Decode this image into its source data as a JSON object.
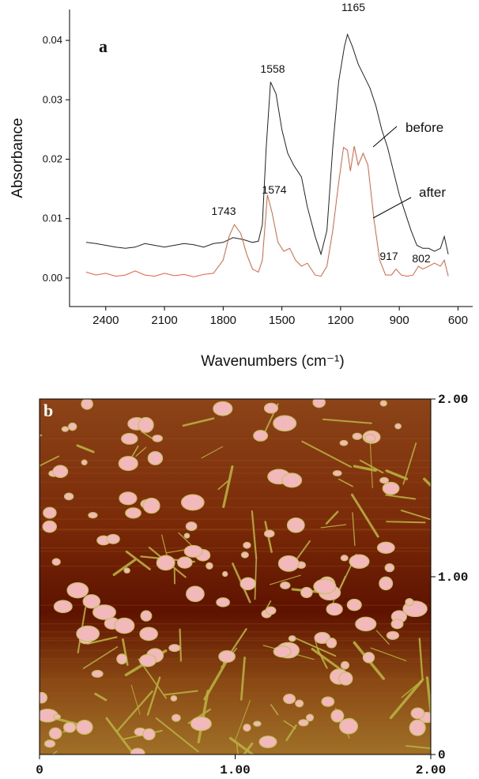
{
  "chart_data": [
    {
      "type": "line",
      "y_label": "Absorbance",
      "x_label": "Wavenumbers (cm⁻¹)",
      "annotations": [
        "a",
        "1165",
        "1558",
        "1574",
        "1743",
        "917",
        "802"
      ],
      "xlim": [
        2585,
        525
      ],
      "ylim": [
        -0.0048,
        0.0452
      ],
      "xticks": [
        2400,
        2100,
        1800,
        1500,
        1200,
        900,
        600
      ],
      "yticks": [
        {
          "value": 0,
          "label": "0.00"
        },
        {
          "value": 0.01,
          "label": "0.01"
        },
        {
          "value": 0.02,
          "label": "0.02"
        },
        {
          "value": 0.03,
          "label": "0.03"
        },
        {
          "value": 0.04,
          "label": "0.04"
        }
      ],
      "series": [
        {
          "name": "before",
          "color": "#222222",
          "x": [
            2500,
            2450,
            2400,
            2350,
            2300,
            2250,
            2200,
            2150,
            2100,
            2050,
            2000,
            1950,
            1900,
            1850,
            1800,
            1750,
            1700,
            1650,
            1620,
            1600,
            1580,
            1558,
            1530,
            1500,
            1470,
            1440,
            1400,
            1370,
            1330,
            1300,
            1270,
            1240,
            1210,
            1180,
            1165,
            1140,
            1110,
            1080,
            1050,
            1020,
            990,
            960,
            930,
            900,
            870,
            840,
            810,
            780,
            750,
            720,
            690,
            670,
            650
          ],
          "values": [
            0.006,
            0.0058,
            0.0055,
            0.0052,
            0.005,
            0.0052,
            0.0058,
            0.0055,
            0.0052,
            0.0055,
            0.0058,
            0.0056,
            0.0052,
            0.0058,
            0.006,
            0.0068,
            0.0065,
            0.006,
            0.0062,
            0.009,
            0.022,
            0.033,
            0.031,
            0.025,
            0.021,
            0.019,
            0.017,
            0.012,
            0.007,
            0.004,
            0.008,
            0.022,
            0.033,
            0.039,
            0.041,
            0.039,
            0.036,
            0.034,
            0.032,
            0.029,
            0.025,
            0.022,
            0.018,
            0.014,
            0.011,
            0.008,
            0.0055,
            0.005,
            0.005,
            0.0045,
            0.005,
            0.007,
            0.004
          ]
        },
        {
          "name": "after",
          "color": "#e0603c",
          "x": [
            2500,
            2450,
            2400,
            2350,
            2300,
            2250,
            2200,
            2150,
            2100,
            2050,
            2000,
            1950,
            1900,
            1850,
            1800,
            1770,
            1743,
            1710,
            1680,
            1650,
            1620,
            1600,
            1574,
            1550,
            1520,
            1490,
            1460,
            1430,
            1400,
            1370,
            1330,
            1300,
            1270,
            1240,
            1210,
            1185,
            1165,
            1150,
            1130,
            1110,
            1085,
            1060,
            1030,
            1000,
            970,
            940,
            917,
            890,
            860,
            830,
            802,
            780,
            750,
            720,
            690,
            670,
            650
          ],
          "values": [
            0.001,
            0.0005,
            0.0008,
            0.0003,
            0.0005,
            0.0012,
            0.0005,
            0.0003,
            0.0008,
            0.0004,
            0.0006,
            0.0002,
            0.0006,
            0.0008,
            0.003,
            0.007,
            0.009,
            0.0075,
            0.004,
            0.0015,
            0.001,
            0.003,
            0.014,
            0.011,
            0.006,
            0.0045,
            0.005,
            0.003,
            0.002,
            0.0025,
            0.0005,
            0.0003,
            0.002,
            0.008,
            0.016,
            0.022,
            0.0215,
            0.018,
            0.0222,
            0.019,
            0.021,
            0.019,
            0.01,
            0.003,
            0.0005,
            0.0005,
            0.0015,
            0.0005,
            0.0003,
            0.0005,
            0.002,
            0.0015,
            0.002,
            0.0025,
            0.002,
            0.003,
            0.0003
          ]
        }
      ]
    },
    {
      "type": "image",
      "annotation": "b",
      "xlim": [
        0,
        2
      ],
      "ylim": [
        0,
        2
      ],
      "xticks": [
        0,
        {
          "value": 1,
          "label": "1.00"
        },
        {
          "value": 2,
          "label": "2.00"
        }
      ],
      "yticks": [
        0,
        {
          "value": 1,
          "label": "1.00"
        },
        {
          "value": 2,
          "label": "2.00"
        }
      ]
    }
  ]
}
